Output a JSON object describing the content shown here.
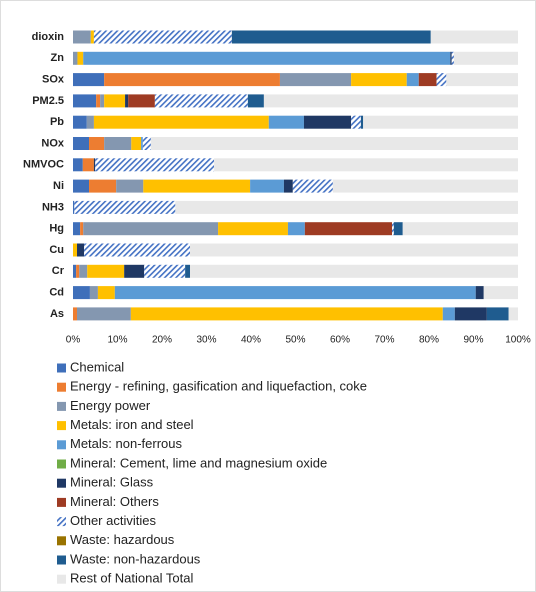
{
  "chart_data": {
    "type": "stacked_barh",
    "categories": [
      "dioxin",
      "Zn",
      "SOx",
      "PM2.5",
      "Pb",
      "NOx",
      "NMVOC",
      "Ni",
      "NH3",
      "Hg",
      "Cu",
      "Cr",
      "Cd",
      "As"
    ],
    "series": [
      {
        "name": "Chemical",
        "color": "#3f6fba",
        "values": [
          0,
          0,
          7,
          5.2,
          3.1,
          3.6,
          2.2,
          3.6,
          0.3,
          1.6,
          0,
          0.7,
          3.8,
          0
        ]
      },
      {
        "name": "Energy - refining, gasification and liquefaction, coke",
        "color": "#ed7d31",
        "values": [
          0,
          0,
          39.5,
          0.9,
          0,
          3.4,
          2.5,
          6.1,
          0,
          0.7,
          0,
          0.7,
          0,
          0.9
        ]
      },
      {
        "name": "Energy power",
        "color": "#8497b0",
        "values": [
          4,
          1,
          16,
          0.9,
          1.6,
          6.1,
          0,
          6.1,
          0,
          30.3,
          0,
          1.8,
          1.8,
          12.1
        ]
      },
      {
        "name": "Metals: iron and steel",
        "color": "#ffc000",
        "values": [
          0.7,
          1.3,
          12.5,
          4.7,
          39.3,
          2.2,
          0,
          24,
          0,
          15.7,
          0.9,
          8.3,
          3.8,
          70.1
        ]
      },
      {
        "name": "Metals: non-ferrous",
        "color": "#5b9bd5",
        "values": [
          0,
          82.5,
          2.7,
          0,
          7.9,
          0.4,
          0,
          7.6,
          0,
          3.8,
          0,
          0,
          81.1,
          2.7
        ]
      },
      {
        "name": "Mineral: Cement, lime and magnesium oxide",
        "color": "#70ad47",
        "values": [
          0,
          0,
          0,
          0,
          0,
          0,
          0,
          0,
          0,
          0,
          0,
          0,
          0,
          0
        ]
      },
      {
        "name": "Mineral: Glass",
        "color": "#1f3864",
        "values": [
          0,
          0.3,
          0,
          0.7,
          10.6,
          0,
          0.3,
          2,
          0,
          0,
          1.6,
          4.5,
          1.8,
          7.2
        ]
      },
      {
        "name": "Mineral: Others",
        "color": "#9e3b23",
        "values": [
          0,
          0,
          4,
          6,
          0,
          0,
          0,
          0,
          0,
          19.6,
          0,
          0,
          0,
          0
        ]
      },
      {
        "name": "Other activities",
        "color": "#4472c4",
        "hatch": true,
        "values": [
          31,
          0.5,
          2.2,
          20.9,
          2.2,
          1.8,
          26.7,
          9,
          22.7,
          0.4,
          23.8,
          9.2,
          0,
          0
        ]
      },
      {
        "name": "Waste: hazardous",
        "color": "#997300",
        "values": [
          0,
          0,
          0,
          0,
          0,
          0,
          0,
          0,
          0,
          0,
          0,
          0,
          0,
          0
        ]
      },
      {
        "name": "Waste: non-hazardous",
        "color": "#1f5c8f",
        "values": [
          44.7,
          0,
          0,
          3.6,
          0.5,
          0,
          0,
          0,
          0,
          2,
          0,
          1.1,
          0,
          4.9
        ]
      },
      {
        "name": "Rest of National Total",
        "color": "#e8e8e8",
        "values": [
          19.6,
          14.4,
          16.1,
          57.1,
          34.8,
          82.5,
          68.3,
          41.6,
          77,
          25.9,
          73.7,
          73.7,
          7.7,
          2.1
        ]
      }
    ],
    "xlim": [
      0,
      100
    ],
    "xticks": [
      {
        "value": 0,
        "label": "0%"
      },
      {
        "value": 10,
        "label": "10%"
      },
      {
        "value": 20,
        "label": "20%"
      },
      {
        "value": 30,
        "label": "30%"
      },
      {
        "value": 40,
        "label": "40%"
      },
      {
        "value": 50,
        "label": "50%"
      },
      {
        "value": 60,
        "label": "60%"
      },
      {
        "value": 70,
        "label": "70%"
      },
      {
        "value": 80,
        "label": "80%"
      },
      {
        "value": 90,
        "label": "90%"
      },
      {
        "value": 100,
        "label": "100%"
      }
    ],
    "grid": false,
    "legend": "bottom"
  }
}
